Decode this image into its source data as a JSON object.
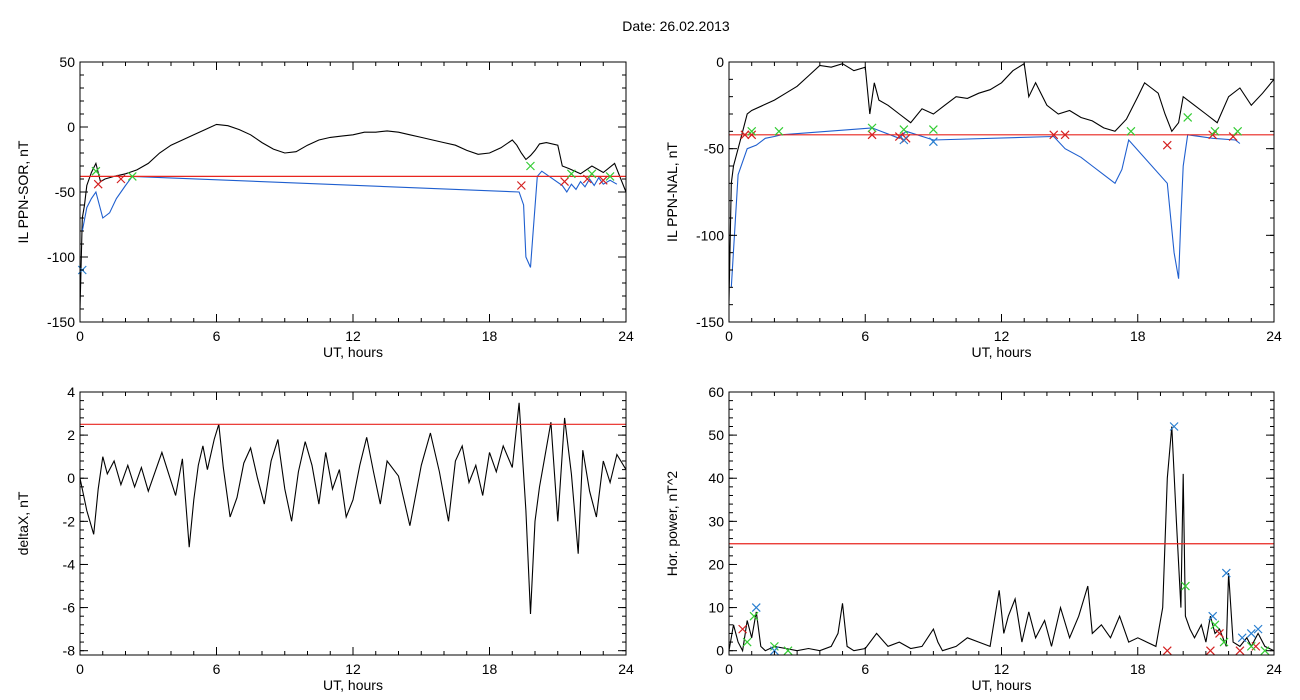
{
  "figure": {
    "title": "Date:  26.02.2013"
  },
  "colors": {
    "trace": "#000000",
    "threshold": "#e8251f",
    "blue_trace": "#1f5fcf",
    "red_marker": "#d42020",
    "green_marker": "#33cc33",
    "blue_marker": "#2a7fd0"
  },
  "chart_data": [
    {
      "id": "panel-sor",
      "type": "line",
      "xlabel": "UT, hours",
      "ylabel": "IL PPN-SOR, nT",
      "xlim": [
        0,
        24
      ],
      "ylim": [
        -150,
        50
      ],
      "xticks": [
        0,
        6,
        12,
        18,
        24
      ],
      "yticks": [
        -150,
        -100,
        -50,
        0,
        50
      ],
      "threshold": -38,
      "series": [
        {
          "role": "black",
          "x": [
            0,
            0.1,
            0.2,
            0.3,
            0.5,
            0.7,
            0.9,
            1.1,
            1.5,
            2,
            2.5,
            3,
            3.5,
            4,
            4.5,
            5,
            5.5,
            6,
            6.5,
            7,
            7.5,
            8,
            8.5,
            9,
            9.5,
            10,
            10.5,
            11,
            11.5,
            12,
            12.5,
            13,
            13.5,
            14,
            14.5,
            15,
            15.5,
            16,
            16.5,
            17,
            17.5,
            18,
            18.5,
            19,
            19.2,
            19.4,
            19.6,
            19.8,
            20,
            20.2,
            20.5,
            21,
            21.2,
            21.5,
            22,
            22.5,
            23,
            23.5,
            24
          ],
          "y": [
            -140,
            -70,
            -60,
            -45,
            -35,
            -28,
            -42,
            -40,
            -38,
            -36,
            -33,
            -28,
            -20,
            -14,
            -10,
            -6,
            -2,
            2,
            1,
            -2,
            -6,
            -12,
            -17,
            -20,
            -19,
            -14,
            -10,
            -8,
            -7,
            -6,
            -4,
            -4,
            -3,
            -4,
            -6,
            -8,
            -10,
            -12,
            -14,
            -18,
            -21,
            -20,
            -16,
            -10,
            -14,
            -20,
            -25,
            -22,
            -18,
            -13,
            -12,
            -14,
            -30,
            -32,
            -36,
            -30,
            -35,
            -28,
            -50
          ]
        },
        {
          "role": "blue",
          "x": [
            0.1,
            0.3,
            0.5,
            0.7,
            1,
            1.3,
            1.6,
            2,
            2.3,
            19.3,
            19.5,
            19.6,
            19.8,
            19.9,
            20.1,
            20.3,
            21.2,
            21.4,
            21.6,
            21.8,
            22,
            22.2,
            22.4,
            22.6,
            22.8,
            23,
            23.3,
            23.6
          ],
          "y": [
            -80,
            -62,
            -55,
            -50,
            -70,
            -66,
            -55,
            -45,
            -38,
            -50,
            -60,
            -100,
            -108,
            -85,
            -38,
            -34,
            -45,
            -50,
            -44,
            -48,
            -42,
            -46,
            -40,
            -45,
            -39,
            -44,
            -41,
            -44
          ]
        }
      ],
      "markers": [
        {
          "kind": "red",
          "x": [
            0.8,
            1.8,
            19.4,
            21.3,
            22.3,
            23.0
          ],
          "y": [
            -44,
            -40,
            -45,
            -42,
            -40,
            -41
          ]
        },
        {
          "kind": "green",
          "x": [
            0.7,
            2.3,
            19.8,
            21.6,
            22.5,
            23.3
          ],
          "y": [
            -34,
            -38,
            -30,
            -36,
            -36,
            -38
          ]
        },
        {
          "kind": "blue",
          "x": [
            0.1
          ],
          "y": [
            -110
          ]
        }
      ]
    },
    {
      "id": "panel-nal",
      "type": "line",
      "xlabel": "UT, hours",
      "ylabel": "IL PPN-NAL, nT",
      "xlim": [
        0,
        24
      ],
      "ylim": [
        -150,
        0
      ],
      "xticks": [
        0,
        6,
        12,
        18,
        24
      ],
      "yticks": [
        -150,
        -100,
        -50,
        0
      ],
      "threshold": -42,
      "series": [
        {
          "role": "black",
          "x": [
            0,
            0.1,
            0.2,
            0.5,
            0.8,
            1,
            1.5,
            2,
            2.5,
            3,
            3.5,
            4,
            4.5,
            5,
            5.5,
            6,
            6.2,
            6.4,
            6.6,
            7,
            7.5,
            8,
            8.5,
            9,
            9.5,
            10,
            10.5,
            11,
            11.5,
            12,
            12.5,
            13,
            13.2,
            13.5,
            14,
            14.5,
            15,
            15.5,
            16,
            16.5,
            17,
            17.5,
            18,
            18.3,
            18.6,
            18.9,
            19.2,
            19.5,
            19.8,
            20,
            20.5,
            21,
            21.5,
            22,
            22.5,
            23,
            23.5,
            24
          ],
          "y": [
            -138,
            -70,
            -60,
            -45,
            -30,
            -28,
            -25,
            -22,
            -18,
            -14,
            -8,
            -2,
            -3,
            -1,
            -5,
            -3,
            -30,
            -12,
            -22,
            -25,
            -30,
            -35,
            -27,
            -30,
            -25,
            -20,
            -21,
            -18,
            -16,
            -12,
            -5,
            -1,
            -20,
            -12,
            -25,
            -30,
            -28,
            -32,
            -34,
            -38,
            -40,
            -33,
            -20,
            -12,
            -15,
            -18,
            -30,
            -40,
            -35,
            -20,
            -25,
            -30,
            -35,
            -20,
            -15,
            -25,
            -18,
            -10
          ]
        },
        {
          "role": "blue",
          "x": [
            0.1,
            0.4,
            0.8,
            1.2,
            1.6,
            2,
            2.3,
            6.3,
            7.5,
            7.8,
            9,
            14.3,
            14.8,
            15.5,
            16,
            16.5,
            17,
            17.3,
            17.6,
            19.3,
            19.6,
            19.8,
            19.9,
            20.0,
            20.2,
            21.3,
            22.3,
            22.5
          ],
          "y": [
            -130,
            -65,
            -50,
            -48,
            -44,
            -43,
            -42,
            -38,
            -44,
            -40,
            -45,
            -43,
            -50,
            -55,
            -60,
            -65,
            -70,
            -62,
            -45,
            -70,
            -110,
            -125,
            -90,
            -60,
            -42,
            -44,
            -45,
            -47
          ]
        }
      ],
      "markers": [
        {
          "kind": "red",
          "x": [
            0.7,
            1,
            6.3,
            7.5,
            7.8,
            14.3,
            14.8,
            19.3,
            21.3,
            22.2
          ],
          "y": [
            -42,
            -42,
            -42,
            -43,
            -44,
            -42,
            -42,
            -48,
            -42,
            -43
          ]
        },
        {
          "kind": "green",
          "x": [
            1.0,
            2.2,
            6.3,
            7.7,
            9,
            17.7,
            20.2,
            21.4,
            22.4
          ],
          "y": [
            -40,
            -40,
            -38,
            -39,
            -39,
            -40,
            -32,
            -40,
            -40
          ]
        },
        {
          "kind": "blue",
          "x": [
            7.7,
            9
          ],
          "y": [
            -45,
            -46
          ]
        }
      ]
    },
    {
      "id": "panel-deltax",
      "type": "line",
      "xlabel": "UT, hours",
      "ylabel": "deltaX, nT",
      "xlim": [
        0,
        24
      ],
      "ylim": [
        -8.2,
        4
      ],
      "xticks": [
        0,
        6,
        12,
        18,
        24
      ],
      "yticks": [
        -8,
        -6,
        -4,
        -2,
        0,
        2,
        4
      ],
      "threshold": 2.5,
      "series": [
        {
          "role": "black",
          "x": [
            0,
            0.3,
            0.6,
            0.8,
            1.0,
            1.2,
            1.5,
            1.8,
            2.1,
            2.4,
            2.7,
            3.0,
            3.3,
            3.6,
            3.9,
            4.2,
            4.5,
            4.8,
            5.0,
            5.2,
            5.4,
            5.6,
            5.9,
            6.1,
            6.3,
            6.6,
            6.9,
            7.2,
            7.5,
            7.8,
            8.1,
            8.4,
            8.7,
            9.0,
            9.3,
            9.6,
            9.9,
            10.2,
            10.5,
            10.8,
            11.1,
            11.4,
            11.7,
            12.0,
            12.3,
            12.6,
            12.9,
            13.2,
            13.5,
            14.0,
            14.5,
            15.0,
            15.4,
            15.8,
            16.2,
            16.5,
            16.8,
            17.1,
            17.4,
            17.7,
            18.0,
            18.3,
            18.6,
            19.0,
            19.3,
            19.6,
            19.8,
            20.0,
            20.2,
            20.4,
            20.7,
            21.0,
            21.3,
            21.6,
            21.9,
            22.1,
            22.4,
            22.7,
            23.0,
            23.3,
            23.6,
            24.0
          ],
          "y": [
            0,
            -1.5,
            -2.6,
            -0.5,
            1.0,
            0.2,
            0.8,
            -0.3,
            0.6,
            -0.4,
            0.5,
            -0.6,
            0.3,
            1.2,
            0.2,
            -0.8,
            0.9,
            -3.2,
            -1.0,
            0.6,
            1.5,
            0.4,
            1.8,
            2.5,
            0.5,
            -1.8,
            -0.9,
            0.7,
            1.4,
            0.0,
            -1.2,
            0.8,
            1.8,
            -0.5,
            -2.0,
            0.3,
            1.7,
            0.6,
            -1.2,
            1.2,
            -0.5,
            0.4,
            -1.8,
            -1.0,
            0.6,
            1.9,
            0.3,
            -1.2,
            0.8,
            0.1,
            -2.2,
            0.6,
            2.1,
            0.3,
            -2.0,
            0.8,
            1.5,
            -0.2,
            0.6,
            -0.8,
            1.2,
            0.3,
            1.5,
            0.5,
            3.5,
            -1.5,
            -6.3,
            -2.0,
            -0.4,
            0.8,
            2.6,
            -2.0,
            2.8,
            0.2,
            -3.5,
            1.3,
            -0.6,
            -1.8,
            0.8,
            -0.2,
            1.1,
            0.4
          ]
        }
      ],
      "markers": []
    },
    {
      "id": "panel-power",
      "type": "line",
      "xlabel": "UT, hours",
      "ylabel": "Hor. power, nT^2",
      "xlim": [
        0,
        24
      ],
      "ylim": [
        -1,
        60
      ],
      "xticks": [
        0,
        6,
        12,
        18,
        24
      ],
      "yticks": [
        0,
        10,
        20,
        30,
        40,
        50,
        60
      ],
      "threshold": 24.8,
      "series": [
        {
          "role": "black",
          "x": [
            0,
            0.2,
            0.4,
            0.6,
            0.8,
            1.0,
            1.2,
            1.4,
            1.6,
            2.0,
            2.5,
            3.0,
            3.5,
            4.0,
            4.5,
            4.8,
            5.0,
            5.2,
            5.5,
            6.0,
            6.5,
            7.0,
            7.5,
            8.0,
            8.5,
            9.0,
            9.2,
            9.4,
            10.0,
            10.5,
            11.0,
            11.5,
            11.9,
            12.1,
            12.3,
            12.6,
            12.9,
            13.2,
            13.5,
            13.9,
            14.2,
            14.6,
            15.0,
            15.4,
            15.8,
            16.0,
            16.4,
            16.8,
            17.2,
            17.6,
            18.0,
            18.4,
            18.8,
            19.1,
            19.3,
            19.5,
            19.7,
            19.9,
            20.0,
            20.1,
            20.3,
            20.5,
            20.8,
            21.0,
            21.2,
            21.4,
            21.6,
            21.9,
            22.0,
            22.2,
            22.5,
            22.8,
            23.0,
            23.3,
            23.6,
            24.0
          ],
          "y": [
            0,
            6,
            2,
            0,
            7,
            3,
            9,
            1,
            0,
            1,
            0.5,
            0,
            0.5,
            0,
            1,
            4,
            11,
            1,
            0,
            0.5,
            4,
            1,
            2,
            0.5,
            1,
            5,
            2,
            0,
            1,
            3,
            2,
            1,
            14,
            4,
            8,
            12,
            2,
            9,
            3,
            7,
            1,
            10,
            3,
            8,
            15,
            4,
            6,
            3,
            8,
            2,
            3,
            2,
            1,
            10,
            40,
            52,
            30,
            10,
            41,
            8,
            5,
            3,
            6,
            2,
            8,
            4,
            5,
            1,
            18,
            2,
            1,
            3,
            1,
            4,
            1,
            0
          ]
        }
      ],
      "markers": [
        {
          "kind": "red",
          "x": [
            0.6,
            19.3,
            21.2,
            21.6,
            22.5,
            23.2
          ],
          "y": [
            5,
            0,
            0,
            4,
            0,
            1
          ]
        },
        {
          "kind": "green",
          "x": [
            0.8,
            1.1,
            2.0,
            2.6,
            20.1,
            21.4,
            21.8,
            23.0,
            23.6
          ],
          "y": [
            2,
            8,
            1,
            0,
            15,
            6,
            2,
            1,
            0
          ]
        },
        {
          "kind": "blue",
          "x": [
            1.2,
            2.0,
            19.6,
            21.3,
            21.9,
            22.6,
            23.0,
            23.3
          ],
          "y": [
            10,
            0,
            52,
            8,
            18,
            3,
            4,
            5
          ]
        }
      ]
    }
  ]
}
